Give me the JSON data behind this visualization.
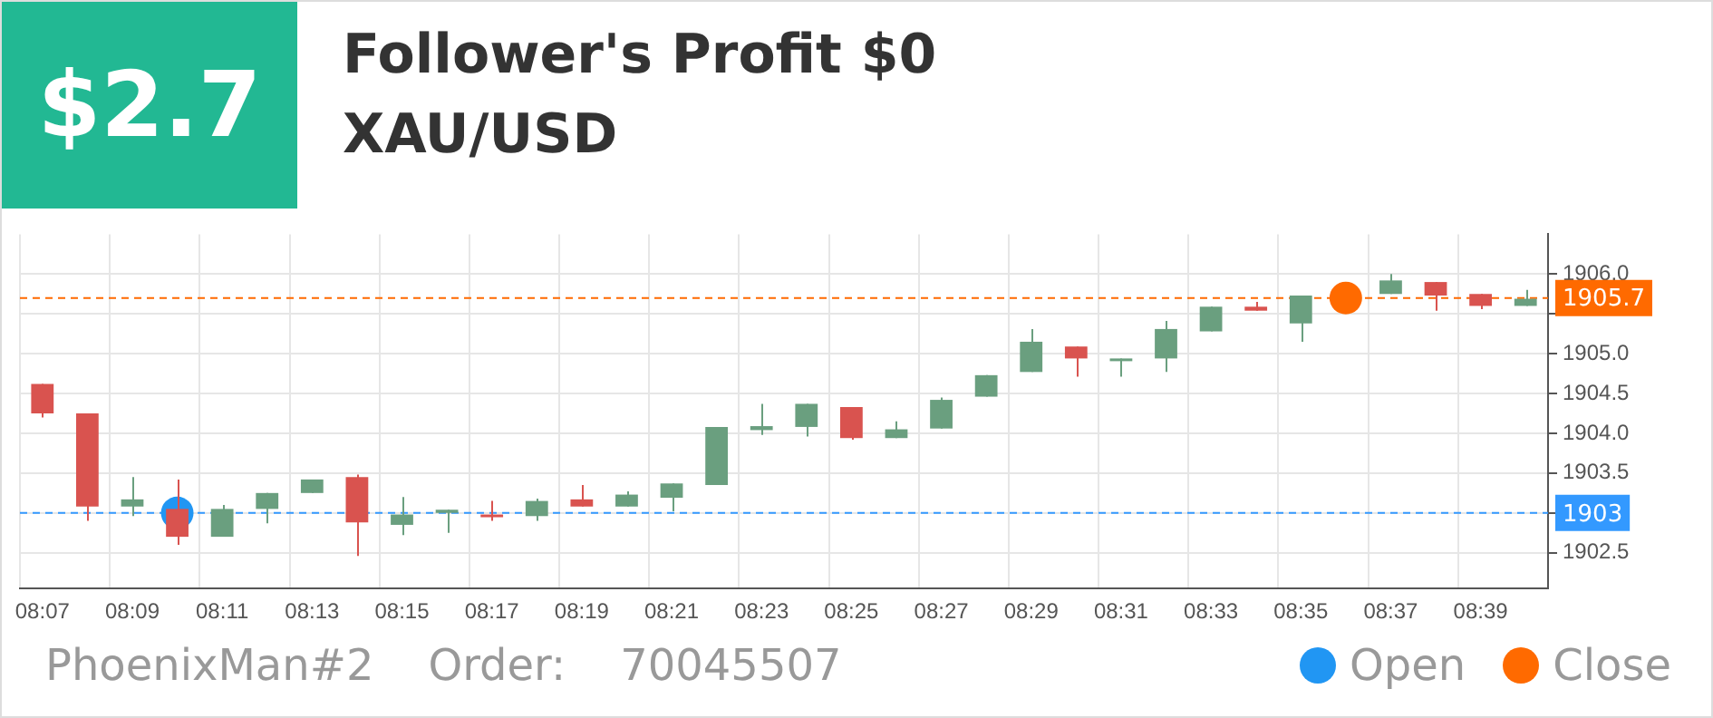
{
  "chart_data": {
    "type": "candlestick",
    "title": "Follower's Profit $0",
    "subtitle": "XAU/USD",
    "annotations": [
      "$2.7",
      "PhoenixMan#2",
      "Order:",
      "70045507"
    ],
    "categories": [
      "08:07",
      null,
      "08:09",
      null,
      "08:11",
      null,
      "08:13",
      null,
      "08:15",
      null,
      "08:17",
      null,
      "08:19",
      null,
      "08:21",
      null,
      "08:23",
      null,
      "08:25",
      null,
      "08:27",
      null,
      "08:29",
      null,
      "08:31",
      null,
      "08:33",
      null,
      "08:35",
      null,
      "08:37",
      null,
      "08:39",
      null
    ],
    "ohlc": [
      [
        1904.62,
        1904.62,
        1904.2,
        1904.25
      ],
      [
        1904.25,
        1904.25,
        1902.9,
        1903.08
      ],
      [
        1903.08,
        1903.45,
        1902.96,
        1903.17
      ],
      [
        1903.05,
        1903.42,
        1902.6,
        1902.7
      ],
      [
        1902.7,
        1903.1,
        1902.7,
        1903.05
      ],
      [
        1903.05,
        1903.25,
        1902.87,
        1903.25
      ],
      [
        1903.25,
        1903.42,
        1903.25,
        1903.42
      ],
      [
        1903.45,
        1903.48,
        1902.46,
        1902.88
      ],
      [
        1902.85,
        1903.2,
        1902.72,
        1902.98
      ],
      [
        1903.0,
        1903.04,
        1902.75,
        1903.04
      ],
      [
        1902.98,
        1903.15,
        1902.9,
        1902.95
      ],
      [
        1902.96,
        1903.18,
        1902.9,
        1903.15
      ],
      [
        1903.17,
        1903.35,
        1903.08,
        1903.08
      ],
      [
        1903.08,
        1903.27,
        1903.08,
        1903.23
      ],
      [
        1903.19,
        1903.37,
        1903.02,
        1903.37
      ],
      [
        1903.35,
        1904.08,
        1903.35,
        1904.08
      ],
      [
        1904.04,
        1904.37,
        1903.98,
        1904.09
      ],
      [
        1904.08,
        1904.37,
        1903.96,
        1904.37
      ],
      [
        1904.33,
        1904.33,
        1903.92,
        1903.94
      ],
      [
        1903.94,
        1904.15,
        1903.94,
        1904.05
      ],
      [
        1904.06,
        1904.45,
        1904.06,
        1904.42
      ],
      [
        1904.46,
        1904.73,
        1904.46,
        1904.73
      ],
      [
        1904.77,
        1905.31,
        1904.77,
        1905.15
      ],
      [
        1905.09,
        1905.09,
        1904.71,
        1904.94
      ],
      [
        1904.91,
        1904.94,
        1904.71,
        1904.94
      ],
      [
        1904.94,
        1905.41,
        1904.77,
        1905.31
      ],
      [
        1905.28,
        1905.59,
        1905.28,
        1905.59
      ],
      [
        1905.59,
        1905.65,
        1905.54,
        1905.54
      ],
      [
        1905.38,
        1905.73,
        1905.15,
        1905.73
      ],
      null,
      [
        1905.75,
        1906.0,
        1905.75,
        1905.92
      ],
      [
        1905.9,
        1905.9,
        1905.54,
        1905.73
      ],
      [
        1905.75,
        1905.75,
        1905.56,
        1905.6
      ],
      [
        1905.6,
        1905.8,
        1905.6,
        1905.69
      ]
    ],
    "colors": [
      "#d9534f",
      "#d9534f",
      "#6a9f7f",
      "#d9534f",
      "#6a9f7f",
      "#6a9f7f",
      "#6a9f7f",
      "#d9534f",
      "#6a9f7f",
      "#6a9f7f",
      "#d9534f",
      "#6a9f7f",
      "#d9534f",
      "#6a9f7f",
      "#6a9f7f",
      "#6a9f7f",
      "#6a9f7f",
      "#6a9f7f",
      "#d9534f",
      "#6a9f7f",
      "#6a9f7f",
      "#6a9f7f",
      "#6a9f7f",
      "#d9534f",
      "#6a9f7f",
      "#6a9f7f",
      "#6a9f7f",
      "#d9534f",
      "#6a9f7f",
      null,
      "#6a9f7f",
      "#d9534f",
      "#d9534f",
      "#6a9f7f"
    ],
    "series": [
      {
        "type": "scatter",
        "name": "Open",
        "color": "#2196f3",
        "values": [
          null,
          null,
          null,
          1903.0,
          null,
          null,
          null,
          null,
          null,
          null,
          null,
          null,
          null,
          null,
          null,
          null,
          null,
          null,
          null,
          null,
          null,
          null,
          null,
          null,
          null,
          null,
          null,
          null,
          null,
          null,
          null,
          null,
          null,
          null
        ]
      },
      {
        "type": "scatter",
        "name": "Close",
        "color": "#ff6a00",
        "values": [
          null,
          null,
          null,
          null,
          null,
          null,
          null,
          null,
          null,
          null,
          null,
          null,
          null,
          null,
          null,
          null,
          null,
          null,
          null,
          null,
          null,
          null,
          null,
          null,
          null,
          null,
          null,
          null,
          null,
          1905.7,
          null,
          null,
          null,
          null
        ]
      }
    ],
    "marker": "circle",
    "ylim": [
      1902.05,
      1906.5
    ],
    "yticks": [
      {
        "value": 1902.5,
        "label": "1902.5"
      },
      {
        "value": 1903.0,
        "label": null
      },
      {
        "value": 1903.5,
        "label": "1903.5"
      },
      {
        "value": 1904.0,
        "label": "1904.0"
      },
      {
        "value": 1904.5,
        "label": "1904.5"
      },
      {
        "value": 1905.0,
        "label": "1905.0"
      },
      {
        "value": 1905.5,
        "label": null
      },
      {
        "value": 1906.0,
        "label": "1906.0"
      }
    ],
    "ref_lines": [
      {
        "axis": "y",
        "value": 1903,
        "label": "1903",
        "color": "#3399ff",
        "line_style": "dashed"
      },
      {
        "axis": "y",
        "value": 1905.7,
        "label": "1905.7",
        "color": "#ff6a00",
        "line_style": "dashed"
      }
    ],
    "grid": true,
    "legend": "bottom right"
  }
}
